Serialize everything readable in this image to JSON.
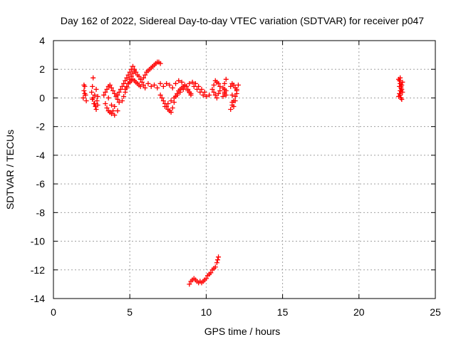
{
  "chart_data": {
    "type": "scatter",
    "title": "Day 162 of 2022, Sidereal Day-to-day VTEC variation (SDTVAR) for receiver p047",
    "xlabel": "GPS time / hours",
    "ylabel": "SDTVAR / TECUs",
    "xlim": [
      0,
      25
    ],
    "ylim": [
      -14,
      4
    ],
    "xticks": [
      "0",
      "5",
      "10",
      "15",
      "20",
      "25"
    ],
    "yticks": [
      "4",
      "2",
      "0",
      "-2",
      "-4",
      "-6",
      "-8",
      "-10",
      "-12",
      "-14"
    ],
    "grid": true,
    "marker": "+",
    "color": "#ff0000",
    "series": [
      {
        "name": "SDTVAR",
        "x": [
          1.95,
          2.0,
          2.05,
          2.1,
          2.15,
          2.05,
          2.0,
          2.5,
          2.55,
          2.6,
          2.65,
          2.7,
          2.75,
          2.8,
          2.85,
          2.9,
          2.6,
          2.7,
          2.8,
          2.9,
          2.55,
          3.3,
          3.4,
          3.5,
          3.6,
          3.7,
          3.8,
          3.9,
          4.0,
          4.1,
          4.2,
          3.4,
          3.5,
          3.6,
          3.7,
          3.8,
          3.9,
          4.0,
          3.6,
          3.8,
          4.0,
          4.2,
          4.3,
          4.2,
          4.3,
          4.4,
          4.5,
          4.6,
          4.7,
          4.8,
          4.9,
          5.0,
          5.1,
          5.2,
          5.3,
          5.4,
          5.5,
          5.6,
          5.7,
          5.8,
          5.9,
          4.5,
          4.6,
          4.7,
          4.8,
          4.9,
          5.0,
          5.1,
          5.2,
          5.3,
          4.7,
          4.8,
          4.9,
          5.0,
          5.1,
          5.2,
          5.3,
          5.4,
          5.5,
          5.6,
          5.7,
          5.9,
          6.0,
          6.1,
          6.2,
          6.3,
          6.4,
          6.5,
          6.6,
          6.7,
          6.8,
          6.9,
          7.0,
          6.0,
          6.2,
          6.4,
          6.6,
          6.8,
          7.0,
          7.2,
          7.4,
          7.6,
          7.8,
          8.0,
          8.2,
          8.4,
          8.6,
          8.8,
          9.0,
          9.2,
          9.4,
          9.6,
          9.8,
          10.0,
          10.2,
          7.0,
          7.1,
          7.2,
          7.3,
          7.4,
          7.5,
          7.6,
          7.7,
          7.8,
          7.9,
          8.0,
          8.1,
          8.2,
          8.3,
          8.4,
          8.5,
          8.6,
          8.7,
          8.8,
          8.9,
          9.0,
          7.3,
          7.5,
          7.7,
          7.9,
          8.1,
          8.3,
          8.5,
          8.7,
          8.9,
          9.1,
          9.3,
          9.5,
          9.7,
          9.9,
          10.4,
          10.5,
          10.6,
          10.7,
          10.8,
          10.9,
          10.5,
          10.6,
          10.7,
          10.8,
          10.9,
          11.1,
          11.2,
          11.3,
          11.1,
          11.2,
          11.3,
          11.2,
          11.3,
          11.2,
          11.6,
          11.7,
          11.8,
          11.9,
          12.0,
          12.1,
          11.7,
          11.8,
          11.9,
          12.0,
          11.6,
          11.7,
          11.8,
          11.9,
          12.0,
          11.7,
          22.6,
          22.65,
          22.7,
          22.75,
          22.8,
          22.85,
          22.6,
          22.65,
          22.7,
          22.75,
          22.8,
          22.85,
          22.7,
          22.75,
          22.8,
          22.7,
          22.65,
          22.75,
          8.9,
          9.0,
          9.1,
          9.2,
          9.3,
          9.4,
          9.5,
          9.6,
          9.7,
          9.8,
          9.9,
          10.0,
          10.1,
          10.2,
          10.3,
          10.4,
          10.5,
          10.6,
          10.7,
          10.75,
          10.8
        ],
        "y": [
          0.0,
          0.5,
          0.8,
          0.2,
          -0.2,
          0.3,
          0.9,
          0.4,
          0.8,
          0.0,
          -0.4,
          0.2,
          -0.6,
          0.6,
          -0.2,
          0.1,
          1.4,
          -0.4,
          -0.8,
          -0.5,
          -0.1,
          0.2,
          0.4,
          0.6,
          0.8,
          0.9,
          0.7,
          0.5,
          0.3,
          0.1,
          -0.1,
          -0.4,
          -0.7,
          -0.9,
          -1.0,
          -1.1,
          -0.9,
          -0.6,
          0.0,
          -0.5,
          -1.2,
          -0.9,
          -0.3,
          0.2,
          0.4,
          0.6,
          0.8,
          1.0,
          1.2,
          1.4,
          1.6,
          1.8,
          2.0,
          2.2,
          2.0,
          1.8,
          1.6,
          1.5,
          1.3,
          1.1,
          0.9,
          -0.2,
          0.1,
          0.4,
          0.7,
          1.0,
          1.3,
          1.5,
          1.7,
          1.9,
          0.6,
          0.8,
          1.0,
          1.1,
          1.2,
          1.3,
          1.2,
          1.1,
          1.0,
          0.9,
          0.8,
          1.4,
          1.6,
          1.8,
          1.9,
          2.0,
          2.1,
          2.2,
          2.3,
          2.4,
          2.5,
          2.5,
          2.4,
          0.7,
          1.0,
          0.8,
          0.9,
          0.7,
          1.0,
          0.8,
          1.0,
          0.9,
          0.7,
          1.0,
          1.2,
          1.1,
          0.8,
          0.5,
          0.3,
          0.8,
          0.6,
          0.4,
          0.2,
          0.1,
          0.2,
          0.2,
          0.0,
          -0.2,
          -0.4,
          -0.6,
          -0.8,
          -0.9,
          -1.0,
          -0.7,
          -0.3,
          0.1,
          0.3,
          0.5,
          0.6,
          0.7,
          0.8,
          0.9,
          0.8,
          0.6,
          0.4,
          0.2,
          -0.6,
          -0.4,
          -0.2,
          0.0,
          0.2,
          0.4,
          0.6,
          0.8,
          1.0,
          1.1,
          1.0,
          0.8,
          0.6,
          0.4,
          0.6,
          0.9,
          1.2,
          1.1,
          1.0,
          0.8,
          0.4,
          0.2,
          0.0,
          0.3,
          0.5,
          0.1,
          0.3,
          0.5,
          0.7,
          1.0,
          1.3,
          0.6,
          0.2,
          0.4,
          -0.8,
          -0.5,
          -0.2,
          0.1,
          0.5,
          0.9,
          -0.3,
          -0.6,
          -0.2,
          0.3,
          0.8,
          1.0,
          0.9,
          0.7,
          0.6,
          0.2,
          0.1,
          0.3,
          0.5,
          0.7,
          0.9,
          1.1,
          1.3,
          1.2,
          1.0,
          0.8,
          0.6,
          0.4,
          0.2,
          0.0,
          -0.1,
          1.4,
          0.8,
          0.5,
          -13.0,
          -12.8,
          -12.7,
          -12.6,
          -12.7,
          -12.8,
          -12.9,
          -12.8,
          -12.9,
          -12.8,
          -12.7,
          -12.6,
          -12.4,
          -12.3,
          -12.2,
          -12.0,
          -11.9,
          -11.8,
          -11.5,
          -11.3,
          -11.1
        ]
      }
    ]
  }
}
